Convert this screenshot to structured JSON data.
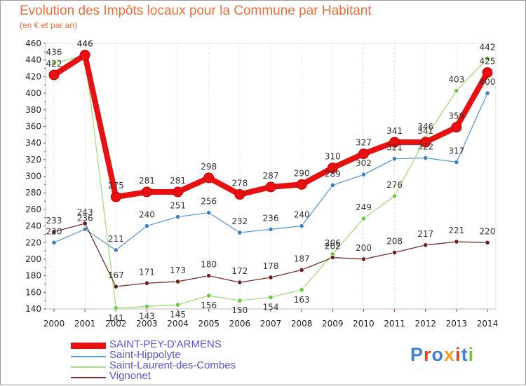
{
  "header": {
    "title": "Evolution des Impôts locaux pour la Commune par Habitant",
    "subtitle": "(en € et par an)"
  },
  "logo": {
    "text": "Proxiti",
    "letter_colors": [
      "#3f7fd4",
      "#e8401c",
      "#3f7fd4",
      "#f0a020",
      "#e8401c",
      "#3f7fd4",
      "#7cc23c"
    ]
  },
  "chart_data": {
    "type": "line",
    "title": "Evolution des Impôts locaux pour la Commune par Habitant",
    "subtitle": "(en € et par an)",
    "x": [
      "2000",
      "2001",
      "2002",
      "2003",
      "2004",
      "2005",
      "2006",
      "2007",
      "2008",
      "2009",
      "2010",
      "2011",
      "2012",
      "2013",
      "2014"
    ],
    "ylim": [
      140,
      460
    ],
    "yticks": [
      140,
      160,
      180,
      200,
      220,
      240,
      260,
      280,
      300,
      320,
      340,
      360,
      380,
      400,
      420,
      440,
      460
    ],
    "grid": "vertical-dashed",
    "legend_position": "bottom-left",
    "series": [
      {
        "name": "SAINT-PEY-D'ARMENS",
        "color": "#e81010",
        "marker": "#e81010",
        "width": 8,
        "values": [
          422,
          446,
          275,
          281,
          281,
          298,
          278,
          287,
          290,
          310,
          327,
          341,
          341,
          359,
          425
        ],
        "labels": [
          "422",
          "446",
          "275",
          "281",
          "281",
          "298",
          "278",
          "287",
          "290",
          "310",
          "327",
          "341",
          "341",
          "359",
          "425"
        ]
      },
      {
        "name": "Saint-Hippolyte",
        "color": "#5b9bd5",
        "marker": "#3b7fc4",
        "width": 1.3,
        "values": [
          220,
          236,
          211,
          240,
          251,
          256,
          232,
          236,
          240,
          289,
          302,
          321,
          322,
          317,
          400
        ],
        "labels": [
          "220",
          "236",
          "211",
          "240",
          "251",
          "256",
          "232",
          "236",
          "240",
          "289",
          "302",
          "321",
          "322",
          "317",
          "400"
        ]
      },
      {
        "name": "Saint-Laurent-des-Combes",
        "color": "#9ee07a",
        "marker": "#6cc840",
        "width": 1.3,
        "values": [
          436,
          446,
          141,
          143,
          145,
          156,
          150,
          154,
          163,
          206,
          249,
          276,
          346,
          403,
          442
        ],
        "labels": [
          "436",
          "446",
          "141",
          "143",
          "145",
          "156",
          "150",
          "154",
          "163",
          "206",
          "249",
          "276",
          "346",
          "403",
          "442"
        ]
      },
      {
        "name": "Vignonet",
        "color": "#7a2a2a",
        "marker": "#6b1e1e",
        "width": 1.3,
        "values": [
          233,
          243,
          167,
          171,
          173,
          180,
          172,
          178,
          187,
          202,
          200,
          208,
          217,
          221,
          220
        ],
        "labels": [
          "233",
          "243",
          "167",
          "171",
          "173",
          "180",
          "172",
          "178",
          "187",
          "202",
          "200",
          "208",
          "217",
          "221",
          "220"
        ]
      }
    ]
  }
}
